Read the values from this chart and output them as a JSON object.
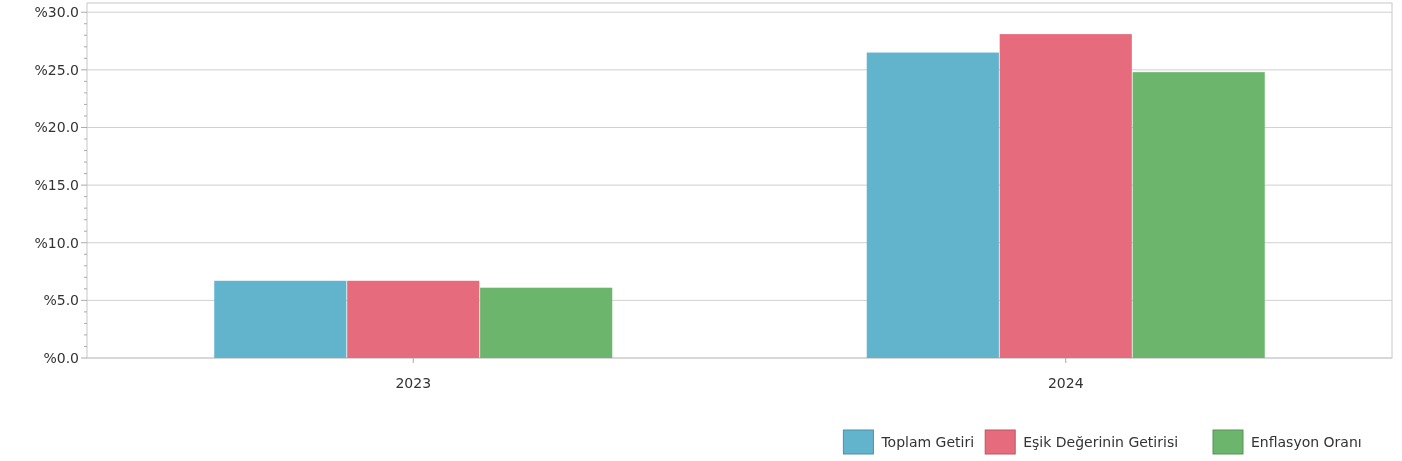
{
  "chart_data": {
    "type": "bar",
    "categories": [
      "2023",
      "2024"
    ],
    "series": [
      {
        "name": "Toplam Getiri",
        "color": "#62b3cc",
        "values": [
          6.7,
          26.5
        ]
      },
      {
        "name": "Eşik Değerinin Getirisi",
        "color": "#e66b7c",
        "values": [
          6.7,
          28.1
        ]
      },
      {
        "name": "Enflasyon Oranı",
        "color": "#6bb56d",
        "values": [
          6.1,
          24.8
        ]
      }
    ],
    "ylim": [
      0,
      30.8
    ],
    "yticks": [
      {
        "value": 0,
        "label": "%0.0"
      },
      {
        "value": 1,
        "label": null
      },
      {
        "value": 2,
        "label": null
      },
      {
        "value": 3,
        "label": null
      },
      {
        "value": 4,
        "label": null
      },
      {
        "value": 5,
        "label": "%5.0"
      },
      {
        "value": 6,
        "label": null
      },
      {
        "value": 7,
        "label": null
      },
      {
        "value": 8,
        "label": null
      },
      {
        "value": 9,
        "label": null
      },
      {
        "value": 10,
        "label": "%10.0"
      },
      {
        "value": 11,
        "label": null
      },
      {
        "value": 12,
        "label": null
      },
      {
        "value": 13,
        "label": null
      },
      {
        "value": 14,
        "label": null
      },
      {
        "value": 15,
        "label": "%15.0"
      },
      {
        "value": 16,
        "label": null
      },
      {
        "value": 17,
        "label": null
      },
      {
        "value": 18,
        "label": null
      },
      {
        "value": 19,
        "label": null
      },
      {
        "value": 20,
        "label": "%20.0"
      },
      {
        "value": 21,
        "label": null
      },
      {
        "value": 22,
        "label": null
      },
      {
        "value": 23,
        "label": null
      },
      {
        "value": 24,
        "label": null
      },
      {
        "value": 25,
        "label": "%25.0"
      },
      {
        "value": 26,
        "label": null
      },
      {
        "value": 27,
        "label": null
      },
      {
        "value": 28,
        "label": null
      },
      {
        "value": 29,
        "label": null
      },
      {
        "value": 30,
        "label": "%30.0"
      }
    ],
    "grid": "y",
    "legend": "bottom right"
  }
}
